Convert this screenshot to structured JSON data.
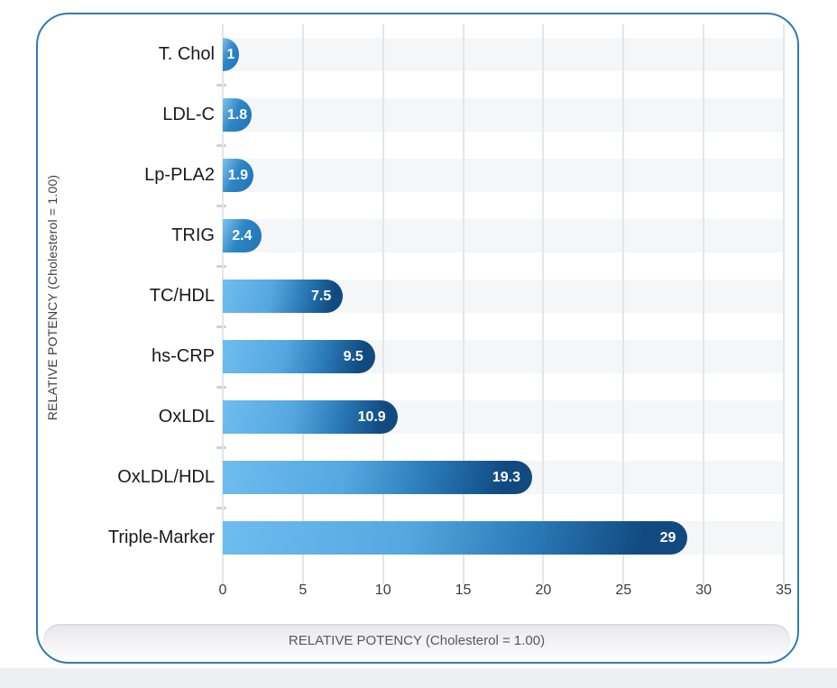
{
  "chart_data": {
    "type": "bar",
    "orientation": "horizontal",
    "categories": [
      "T. Chol",
      "LDL-C",
      "Lp-PLA2",
      "TRIG",
      "TC/HDL",
      "hs-CRP",
      "OxLDL",
      "OxLDL/HDL",
      "Triple-Marker"
    ],
    "values": [
      1,
      1.8,
      1.9,
      2.4,
      7.5,
      9.5,
      10.9,
      19.3,
      29
    ],
    "value_labels": [
      "1",
      "1.8",
      "1.9",
      "2.4",
      "7.5",
      "9.5",
      "10.9",
      "19.3",
      "29"
    ],
    "xlabel": "RELATIVE POTENCY (Cholesterol = 1.00)",
    "ylabel": "RELATIVE POTENCY (Cholesterol = 1.00)",
    "xlim": [
      0,
      35
    ],
    "x_ticks": [
      0,
      5,
      10,
      15,
      20,
      25,
      30,
      35
    ],
    "x_tick_labels": [
      "0",
      "5",
      "10",
      "15",
      "20",
      "25",
      "30",
      "35"
    ],
    "grid": "vertical-every-5",
    "legend": "none"
  },
  "colors": {
    "card_border": "#2e7cb5",
    "bar_gradient_large": [
      "#6ebdf0",
      "#55a7e0",
      "#2a7ab8",
      "#114a80"
    ],
    "bar_gradient_small": [
      "#7fc3ec",
      "#2e86c6",
      "#1e72b2"
    ],
    "row_stripe": "#f5f6f8",
    "gridline": "#e4e5e7",
    "row_tick_dash": "#cdd0d4",
    "value_text": "#ffffff",
    "category_text": "#1a1a1a",
    "axis_tick_text": "#3b3b3b",
    "banner_text": "#58585a",
    "page_bottom_strip": "#edeff2"
  }
}
